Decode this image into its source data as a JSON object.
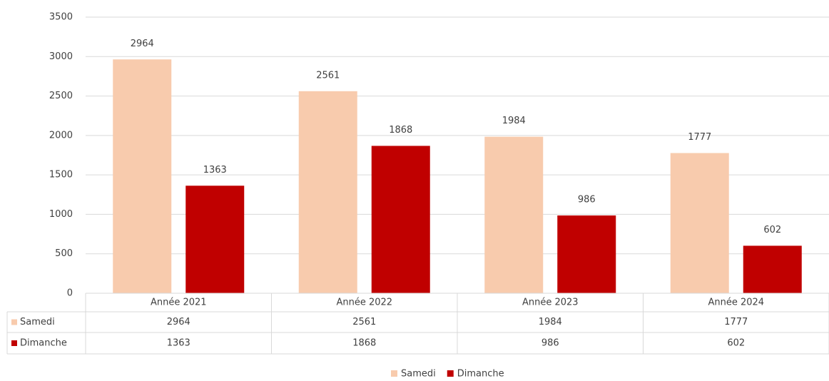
{
  "chart_data": {
    "type": "bar",
    "categories": [
      "Année 2021",
      "Année 2022",
      "Année 2023",
      "Année 2024"
    ],
    "series": [
      {
        "name": "Samedi",
        "color": "#f8cbad",
        "values": [
          2964,
          2561,
          1984,
          1777
        ]
      },
      {
        "name": "Dimanche",
        "color": "#c00000",
        "values": [
          1363,
          1868,
          986,
          602
        ]
      }
    ],
    "ylim": [
      0,
      3500
    ],
    "yticks": [
      0,
      500,
      1000,
      1500,
      2000,
      2500,
      3000,
      3500
    ],
    "grid": true,
    "data_table": true,
    "legend": "bottom"
  }
}
